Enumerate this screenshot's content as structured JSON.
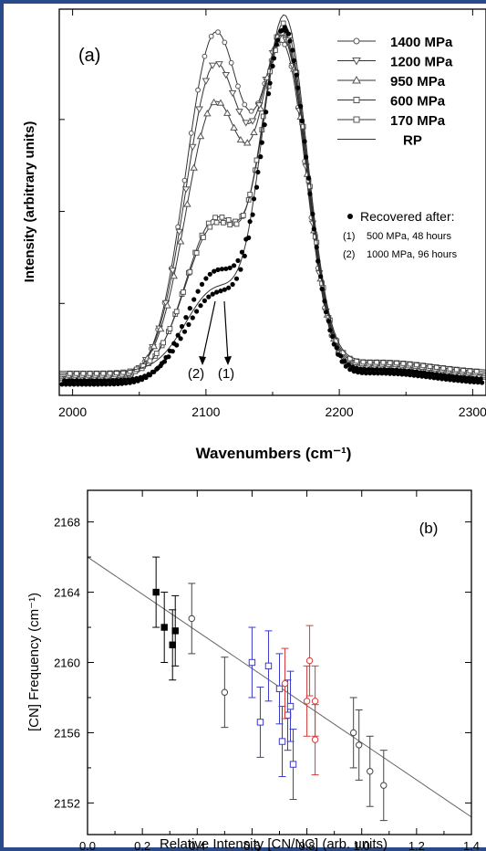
{
  "colors": {
    "frame": "#2a4a8a",
    "blue": "#3a3acc",
    "red": "#d83a3a",
    "black": "#000000",
    "grey": "#444444"
  },
  "chart_data": [
    {
      "type": "line",
      "panel_label": "(a)",
      "xlabel": "Wavenumbers (cm⁻¹)",
      "ylabel": "Intensity (arbitrary units)",
      "xlim": [
        1990,
        2310
      ],
      "ylim": [
        0,
        1.05
      ],
      "xticks": [
        "2000",
        "2100",
        "2200",
        "2300"
      ],
      "ytick_labels": false,
      "series": [
        {
          "name": "1400 MPa",
          "marker": "circle-open",
          "peak_low": 0.94,
          "peak_high": 0.85
        },
        {
          "name": "1200 MPa",
          "marker": "triangle-down-open",
          "peak_low": 0.85,
          "peak_high": 0.87
        },
        {
          "name": "950 MPa",
          "marker": "triangle-up-open",
          "peak_low": 0.74,
          "peak_high": 0.88
        },
        {
          "name": "600 MPa",
          "marker": "square-open",
          "peak_low": 0.42,
          "peak_high": 0.9
        },
        {
          "name": "170 MPa",
          "marker": "square-open",
          "peak_low": 0.4,
          "peak_high": 0.92
        },
        {
          "name": "RP",
          "marker": "none",
          "peak_low": 0.22,
          "peak_high": 0.95
        }
      ],
      "recovered": {
        "title": "Recovered after:",
        "items": [
          {
            "id": "(1)",
            "text": "500 MPa, 48 hours",
            "peak_low": 0.3
          },
          {
            "id": "(2)",
            "text": "1000 MPa, 96 hours",
            "peak_low": 0.23
          }
        ]
      },
      "arrow_labels": [
        "(2)",
        "(1)"
      ]
    },
    {
      "type": "scatter",
      "panel_label": "(b)",
      "xlabel": "Relative Intensity [CN/NC] (arb. units)",
      "ylabel": "[CN] Frequency (cm⁻¹)",
      "xlim": [
        0.0,
        1.4
      ],
      "ylim": [
        2150.2,
        2169.8
      ],
      "xticks": [
        "0.0",
        "0.2",
        "0.4",
        "0.6",
        "0.8",
        "1.0",
        "1.2",
        "1.4"
      ],
      "yticks": [
        "2152",
        "2156",
        "2160",
        "2164",
        "2168"
      ],
      "fit_line": {
        "x": [
          0.0,
          1.4
        ],
        "y": [
          2166.0,
          2151.2
        ]
      },
      "groups": [
        {
          "color": "black",
          "marker": "square-filled",
          "points": [
            {
              "x": 0.25,
              "y": 2164.0,
              "err": 2.0
            },
            {
              "x": 0.28,
              "y": 2162.0,
              "err": 2.0
            },
            {
              "x": 0.31,
              "y": 2161.0,
              "err": 2.0
            },
            {
              "x": 0.32,
              "y": 2161.8,
              "err": 2.0
            }
          ]
        },
        {
          "color": "grey",
          "marker": "circle-open",
          "points": [
            {
              "x": 0.38,
              "y": 2162.5,
              "err": 2.0
            },
            {
              "x": 0.5,
              "y": 2158.3,
              "err": 2.0
            },
            {
              "x": 0.97,
              "y": 2156.0,
              "err": 2.0
            },
            {
              "x": 0.99,
              "y": 2155.3,
              "err": 2.0
            },
            {
              "x": 1.03,
              "y": 2153.8,
              "err": 2.0
            },
            {
              "x": 1.08,
              "y": 2153.0,
              "err": 2.0
            }
          ]
        },
        {
          "color": "blue",
          "marker": "square-open",
          "points": [
            {
              "x": 0.6,
              "y": 2160.0,
              "err": 2.0
            },
            {
              "x": 0.63,
              "y": 2156.6,
              "err": 2.0
            },
            {
              "x": 0.66,
              "y": 2159.8,
              "err": 2.0
            },
            {
              "x": 0.7,
              "y": 2158.5,
              "err": 2.0
            },
            {
              "x": 0.71,
              "y": 2155.5,
              "err": 2.0
            },
            {
              "x": 0.73,
              "y": 2157.0,
              "err": 2.0
            },
            {
              "x": 0.74,
              "y": 2157.5,
              "err": 2.0
            },
            {
              "x": 0.75,
              "y": 2154.2,
              "err": 2.0
            }
          ]
        },
        {
          "color": "red",
          "marker": "circle-open",
          "points": [
            {
              "x": 0.72,
              "y": 2158.8,
              "err": 2.0
            },
            {
              "x": 0.8,
              "y": 2157.8,
              "err": 2.0
            },
            {
              "x": 0.81,
              "y": 2160.1,
              "err": 2.0
            },
            {
              "x": 0.83,
              "y": 2155.6,
              "err": 2.0
            },
            {
              "x": 0.83,
              "y": 2157.8,
              "err": 2.0
            }
          ]
        }
      ]
    }
  ]
}
